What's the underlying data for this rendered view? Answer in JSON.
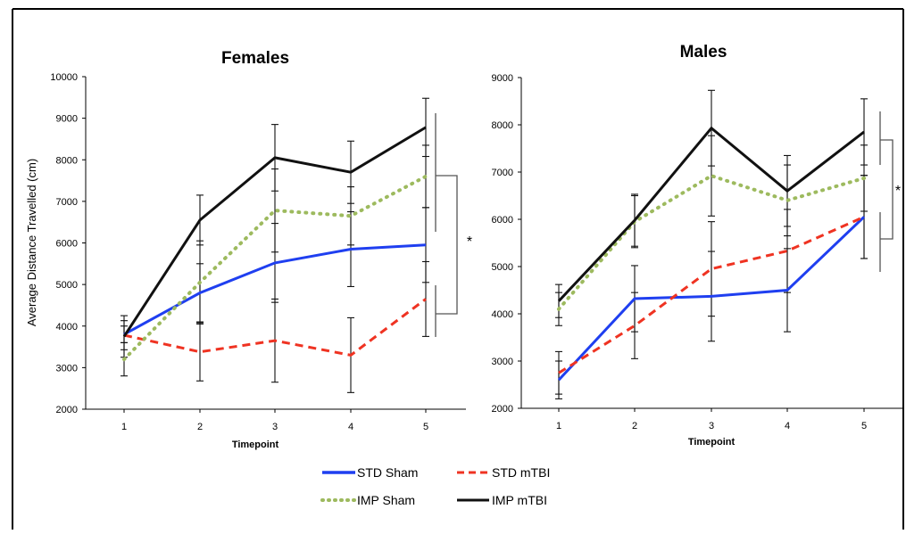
{
  "legend": {
    "items": [
      {
        "label": "STD Sham",
        "color": "#1f3ff0",
        "style": "solid"
      },
      {
        "label": "STD mTBI",
        "color": "#ef3322",
        "style": "dashed"
      },
      {
        "label": "IMP Sham",
        "color": "#9dba5e",
        "style": "dotted"
      },
      {
        "label": "IMP mTBI",
        "color": "#111111",
        "style": "solid"
      }
    ]
  },
  "chart_data": [
    {
      "type": "line",
      "title": "Females",
      "xlabel": "Timepoint",
      "ylabel": "Average Distance Travelled (cm)",
      "categories": [
        "1",
        "2",
        "3",
        "4",
        "5"
      ],
      "ylim": [
        2000,
        10000
      ],
      "yticks": [
        "2000",
        "3000",
        "4000",
        "5000",
        "6000",
        "7000",
        "8000",
        "9000",
        "10000"
      ],
      "grid": false,
      "series": [
        {
          "name": "STD Sham",
          "color": "#1f3ff0",
          "style": "solid",
          "values": [
            3800,
            4800,
            5520,
            5850,
            5950
          ],
          "errors": [
            200,
            700,
            950,
            900,
            900
          ]
        },
        {
          "name": "STD mTBI",
          "color": "#ef3322",
          "style": "dashed",
          "values": [
            3780,
            3380,
            3650,
            3300,
            4650
          ],
          "errors": [
            350,
            700,
            1000,
            900,
            900
          ]
        },
        {
          "name": "IMP Sham",
          "color": "#9dba5e",
          "style": "dotted",
          "values": [
            3200,
            5050,
            6780,
            6650,
            7600
          ],
          "errors": [
            400,
            1000,
            1000,
            700,
            750
          ]
        },
        {
          "name": "IMP mTBI",
          "color": "#111111",
          "style": "solid",
          "values": [
            3750,
            6550,
            8050,
            7700,
            8780
          ],
          "errors": [
            500,
            600,
            800,
            750,
            700
          ]
        }
      ],
      "significance": [
        {
          "label": "*"
        }
      ]
    },
    {
      "type": "line",
      "title": "Males",
      "xlabel": "Timepoint",
      "ylabel": "",
      "categories": [
        "1",
        "2",
        "3",
        "4",
        "5"
      ],
      "ylim": [
        2000,
        9000
      ],
      "yticks": [
        "2000",
        "3000",
        "4000",
        "5000",
        "6000",
        "7000",
        "8000",
        "9000"
      ],
      "grid": false,
      "series": [
        {
          "name": "STD Sham",
          "color": "#1f3ff0",
          "style": "solid",
          "values": [
            2600,
            4320,
            4370,
            4500,
            6050
          ],
          "errors": [
            400,
            700,
            950,
            880,
            880
          ]
        },
        {
          "name": "STD mTBI",
          "color": "#ef3322",
          "style": "dashed",
          "values": [
            2750,
            3750,
            4950,
            5330,
            6050
          ],
          "errors": [
            450,
            700,
            1000,
            880,
            880
          ]
        },
        {
          "name": "IMP Sham",
          "color": "#9dba5e",
          "style": "dotted",
          "values": [
            4100,
            5950,
            6920,
            6400,
            6870
          ],
          "errors": [
            350,
            550,
            850,
            750,
            700
          ]
        },
        {
          "name": "IMP mTBI",
          "color": "#111111",
          "style": "solid",
          "values": [
            4270,
            5980,
            7930,
            6600,
            7850
          ],
          "errors": [
            350,
            550,
            800,
            750,
            700
          ]
        }
      ],
      "significance": [
        {
          "label": "*"
        }
      ]
    }
  ]
}
